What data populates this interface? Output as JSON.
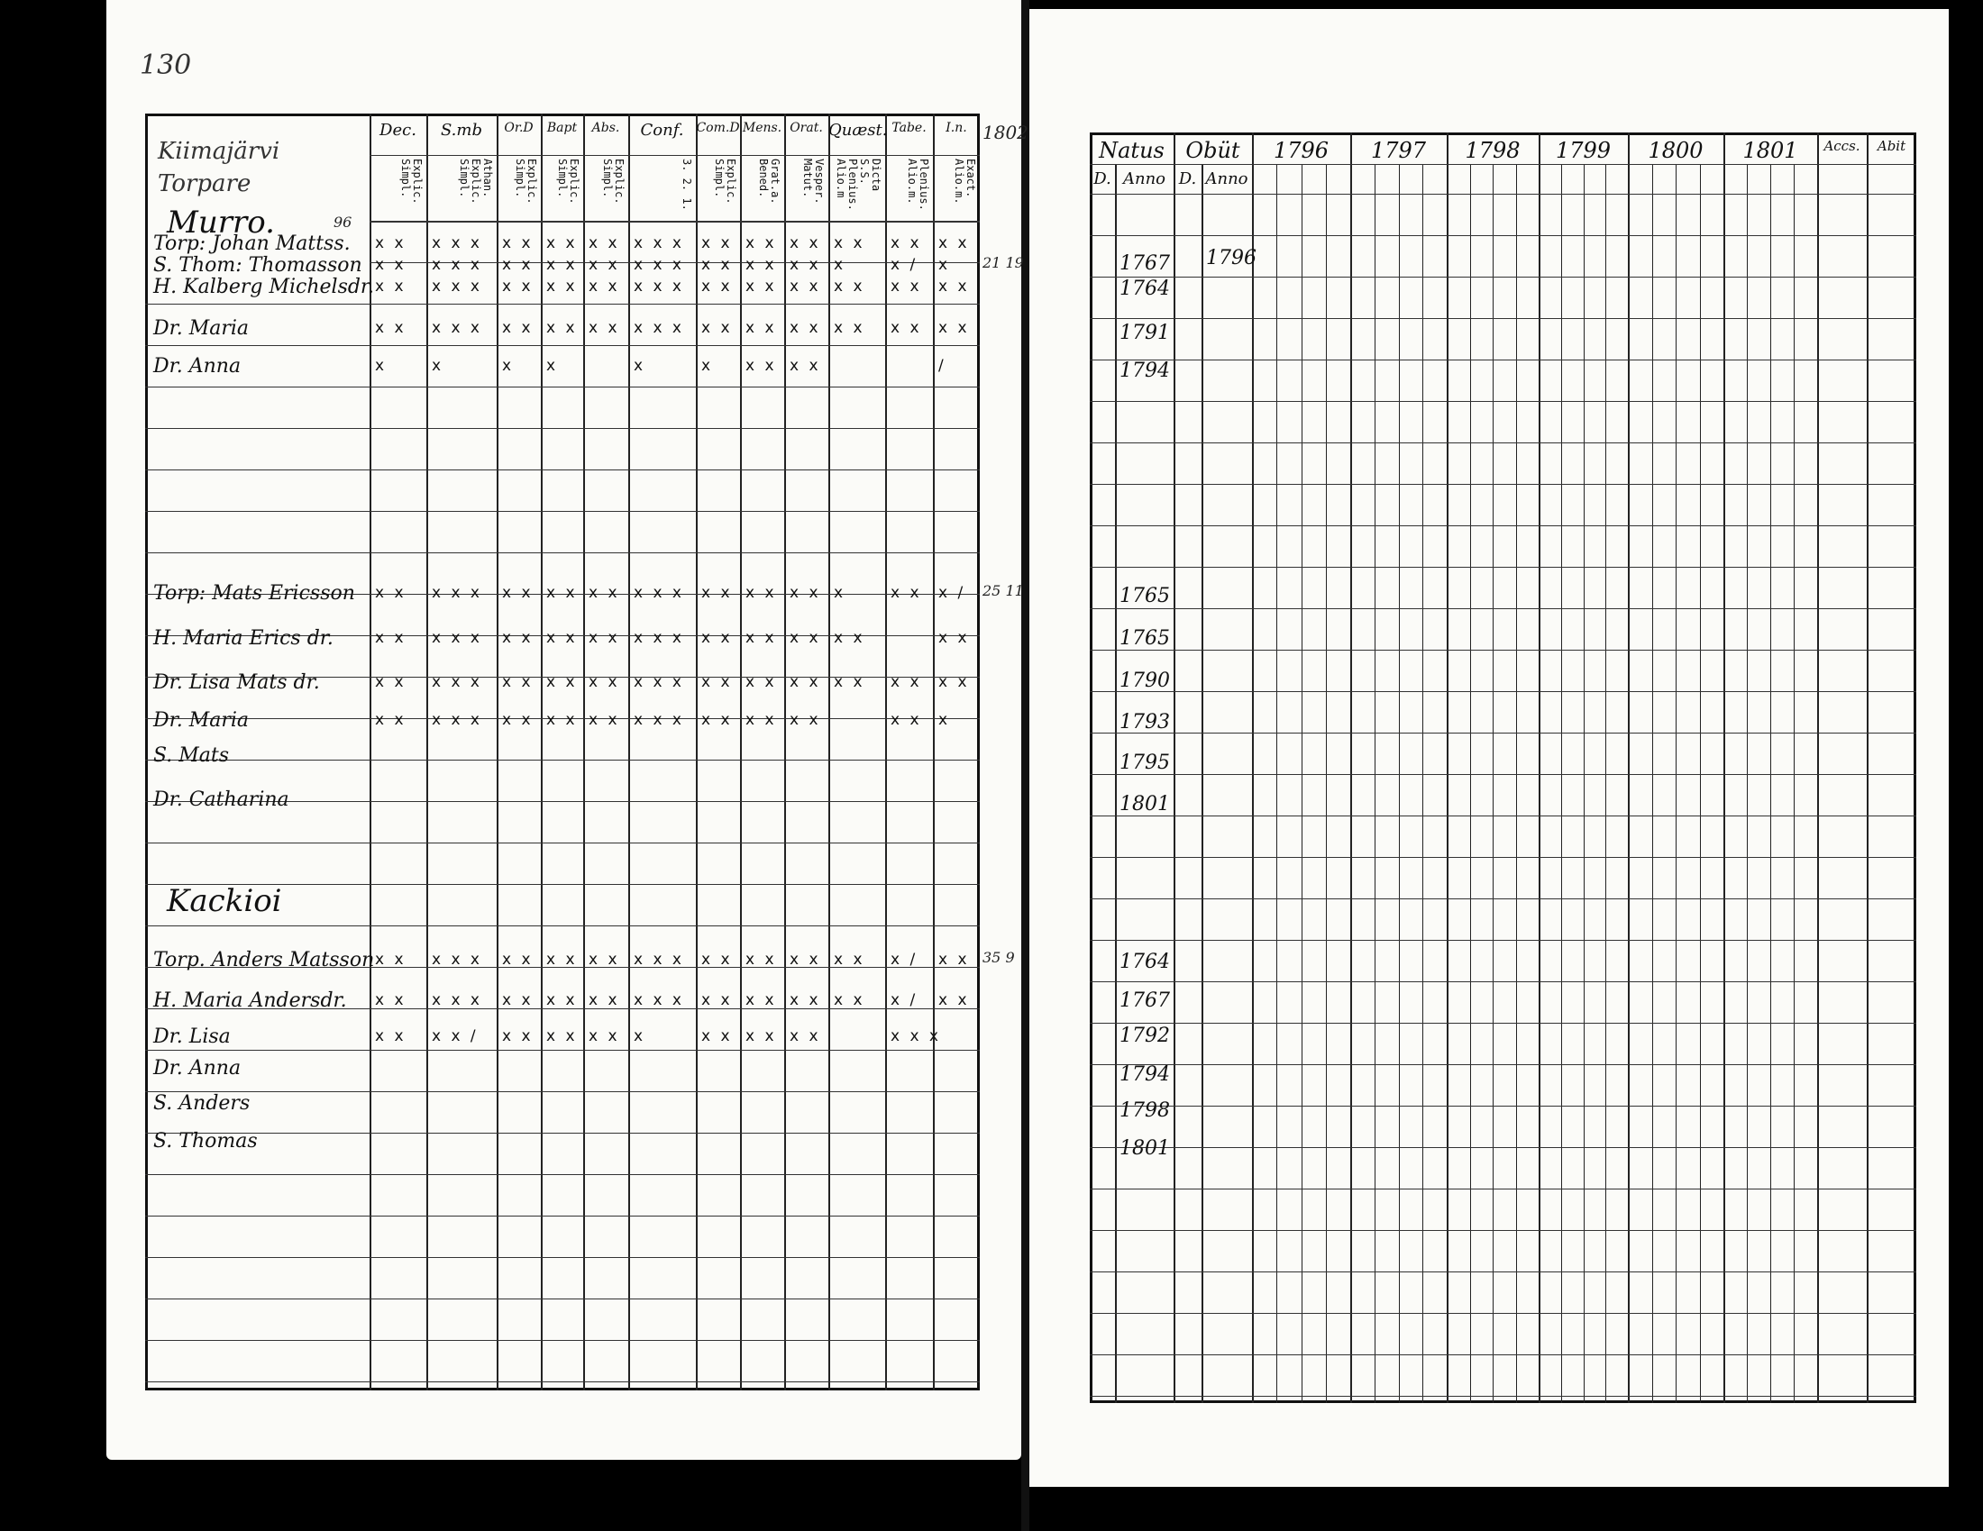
{
  "left_page": {
    "page_number": "130",
    "year_note": "1802",
    "title_handwritten": "Kiimajärvi Torpare",
    "column_headers": [
      {
        "top": "Dec.",
        "sub": "Explic. Simpl."
      },
      {
        "top": "S.mb",
        "sub": "Athan. Explic. Simpl."
      },
      {
        "top": "Or.D",
        "sub": "Explic. Simpl."
      },
      {
        "top": "Bapt",
        "sub": "Explic. Simpl."
      },
      {
        "top": "Abs.",
        "sub": "Explic. Simpl."
      },
      {
        "top": "Conf.",
        "sub": "3. 2. 1."
      },
      {
        "top": "Com.D",
        "sub": "Explic. Simpl."
      },
      {
        "top": "Mens.",
        "sub": "Grat.a. Bened."
      },
      {
        "top": "Orat.",
        "sub": "Vesper. Matut."
      },
      {
        "top": "Quæst.",
        "sub": "Dicta S.S. Plenius. Alio.m"
      },
      {
        "top": "Tabe.",
        "sub": "Plenius. Alio.m."
      },
      {
        "top": "I.n.",
        "sub": "Exact. Alio.m."
      }
    ],
    "entries": [
      {
        "name": "Murro.",
        "heading": true,
        "note": "96"
      },
      {
        "name": "Torp: Johan Mattss.",
        "marks": [
          "x x",
          "x x x",
          "x x",
          "x x",
          "x x",
          "x x x",
          "x x",
          "x x",
          "x x",
          "x x",
          "x x",
          "x x"
        ]
      },
      {
        "name": "S. Thom: Thomasson",
        "marks": [
          "x x",
          "x x x",
          "x x",
          "x x",
          "x x",
          "x x x",
          "x x",
          "x x",
          "x x",
          "x",
          "x /",
          "x"
        ],
        "note": "21 19"
      },
      {
        "name": "H. Kalberg Michelsdr.",
        "marks": [
          "x x",
          "x x x",
          "x x",
          "x x",
          "x x",
          "x x x",
          "x x",
          "x x",
          "x x",
          "x x",
          "x x",
          "x x"
        ]
      },
      {
        "name": "Dr. Maria",
        "marks": [
          "x x",
          "x x x",
          "x x",
          "x x",
          "x x",
          "x x x",
          "x x",
          "x x",
          "x x",
          "x x",
          "x x",
          "x x"
        ]
      },
      {
        "name": "Dr. Anna",
        "marks": [
          "x",
          "x",
          "x",
          "x",
          "",
          "x",
          "x",
          "x x",
          "x x",
          "",
          "",
          "/"
        ]
      },
      {
        "name": "Torp: Mats Ericsson",
        "marks": [
          "x x",
          "x x x",
          "x x",
          "x x",
          "x x",
          "x x x",
          "x x",
          "x x",
          "x x",
          "x",
          "x x",
          "x /"
        ],
        "note": "25 11"
      },
      {
        "name": "H. Maria Erics dr.",
        "marks": [
          "x x",
          "x x x",
          "x x",
          "x x",
          "x x",
          "x x x",
          "x x",
          "x x",
          "x x",
          "x x",
          "",
          "x x"
        ]
      },
      {
        "name": "Dr. Lisa Mats dr.",
        "marks": [
          "x x",
          "x x x",
          "x x",
          "x x",
          "x x",
          "x x x",
          "x x",
          "x x",
          "x x",
          "x x",
          "x x",
          "x x"
        ]
      },
      {
        "name": "Dr. Maria",
        "marks": [
          "x x",
          "x x x",
          "x x",
          "x x",
          "x x",
          "x x x",
          "x x",
          "x x",
          "x x",
          "",
          "x x",
          "x"
        ]
      },
      {
        "name": "S. Mats"
      },
      {
        "name": "Dr. Catharina"
      },
      {
        "name": "Kackioi",
        "heading": true
      },
      {
        "name": "Torp. Anders Matsson",
        "marks": [
          "x x",
          "x x x",
          "x x",
          "x x",
          "x x",
          "x x x",
          "x x",
          "x x",
          "x x",
          "x x",
          "x /",
          "x x"
        ],
        "note": "35 9"
      },
      {
        "name": "H. Maria Andersdr.",
        "marks": [
          "x x",
          "x x x",
          "x x",
          "x x",
          "x x",
          "x x x",
          "x x",
          "x x",
          "x x",
          "x x",
          "x /",
          "x x"
        ]
      },
      {
        "name": "Dr. Lisa",
        "marks": [
          "x x",
          "x x /",
          "x x",
          "x x",
          "x x",
          "x",
          "x x",
          "x x",
          "x x",
          "",
          "x x x",
          ""
        ]
      },
      {
        "name": "Dr. Anna"
      },
      {
        "name": "S. Anders"
      },
      {
        "name": "S. Thomas"
      }
    ]
  },
  "right_page": {
    "headers": [
      "Natus",
      "Obüt",
      "1796",
      "1797",
      "1798",
      "1799",
      "1800",
      "1801",
      "Accs.",
      "Abit"
    ],
    "sub_headers": [
      "D.",
      "Anno",
      "D.",
      "Anno"
    ],
    "birth_years": [
      "1767",
      "1764",
      "1791",
      "1794",
      "1765",
      "1765",
      "1790",
      "1793",
      "1795",
      "1801",
      "1764",
      "1767",
      "1792",
      "1794",
      "1798",
      "1801"
    ],
    "death_year": "1796"
  },
  "colors": {
    "paper": "#fbfbf8",
    "ink": "#111111",
    "background": "#000000"
  }
}
